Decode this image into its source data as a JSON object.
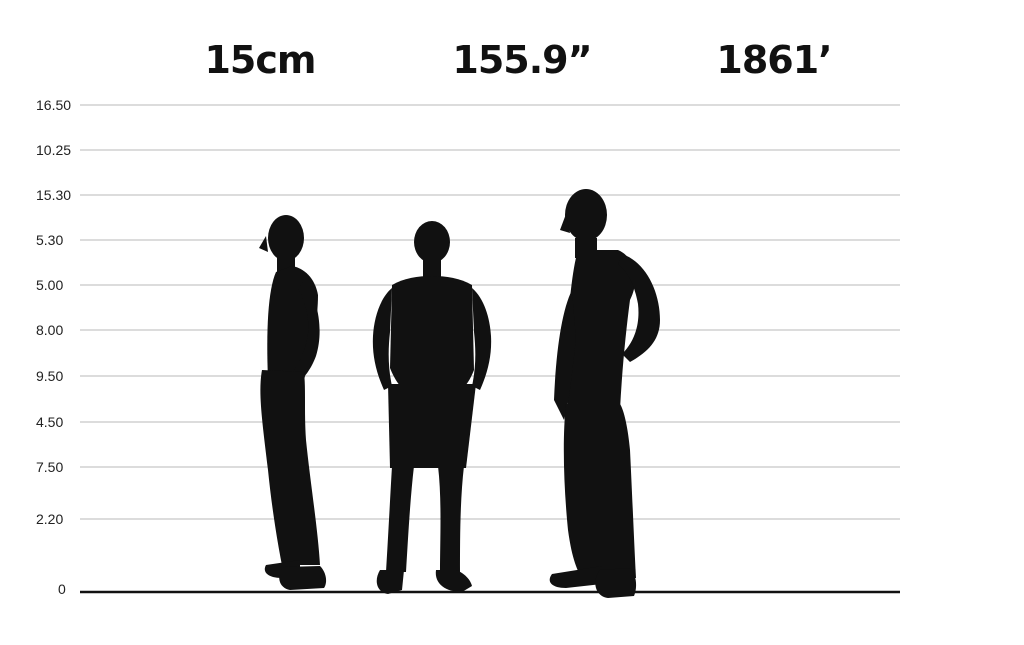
{
  "height_labels": [
    "15cm",
    "155.9”",
    "1861’"
  ],
  "scale_ticks": [
    "16.50",
    "10.25",
    "15.30",
    "5.30",
    "5.00",
    "8.00",
    "9.50",
    "4.50",
    "7.50",
    "2.20",
    "0"
  ],
  "figures": [
    {
      "name": "left-figure",
      "pose": "profile-facing-left"
    },
    {
      "name": "middle-figure",
      "pose": "front-facing"
    },
    {
      "name": "right-figure",
      "pose": "three-quarter-facing-left"
    }
  ],
  "colors": {
    "background": "#ffffff",
    "silhouette": "#111111",
    "gridline": "#b8b8b8",
    "baseline": "#111111"
  }
}
